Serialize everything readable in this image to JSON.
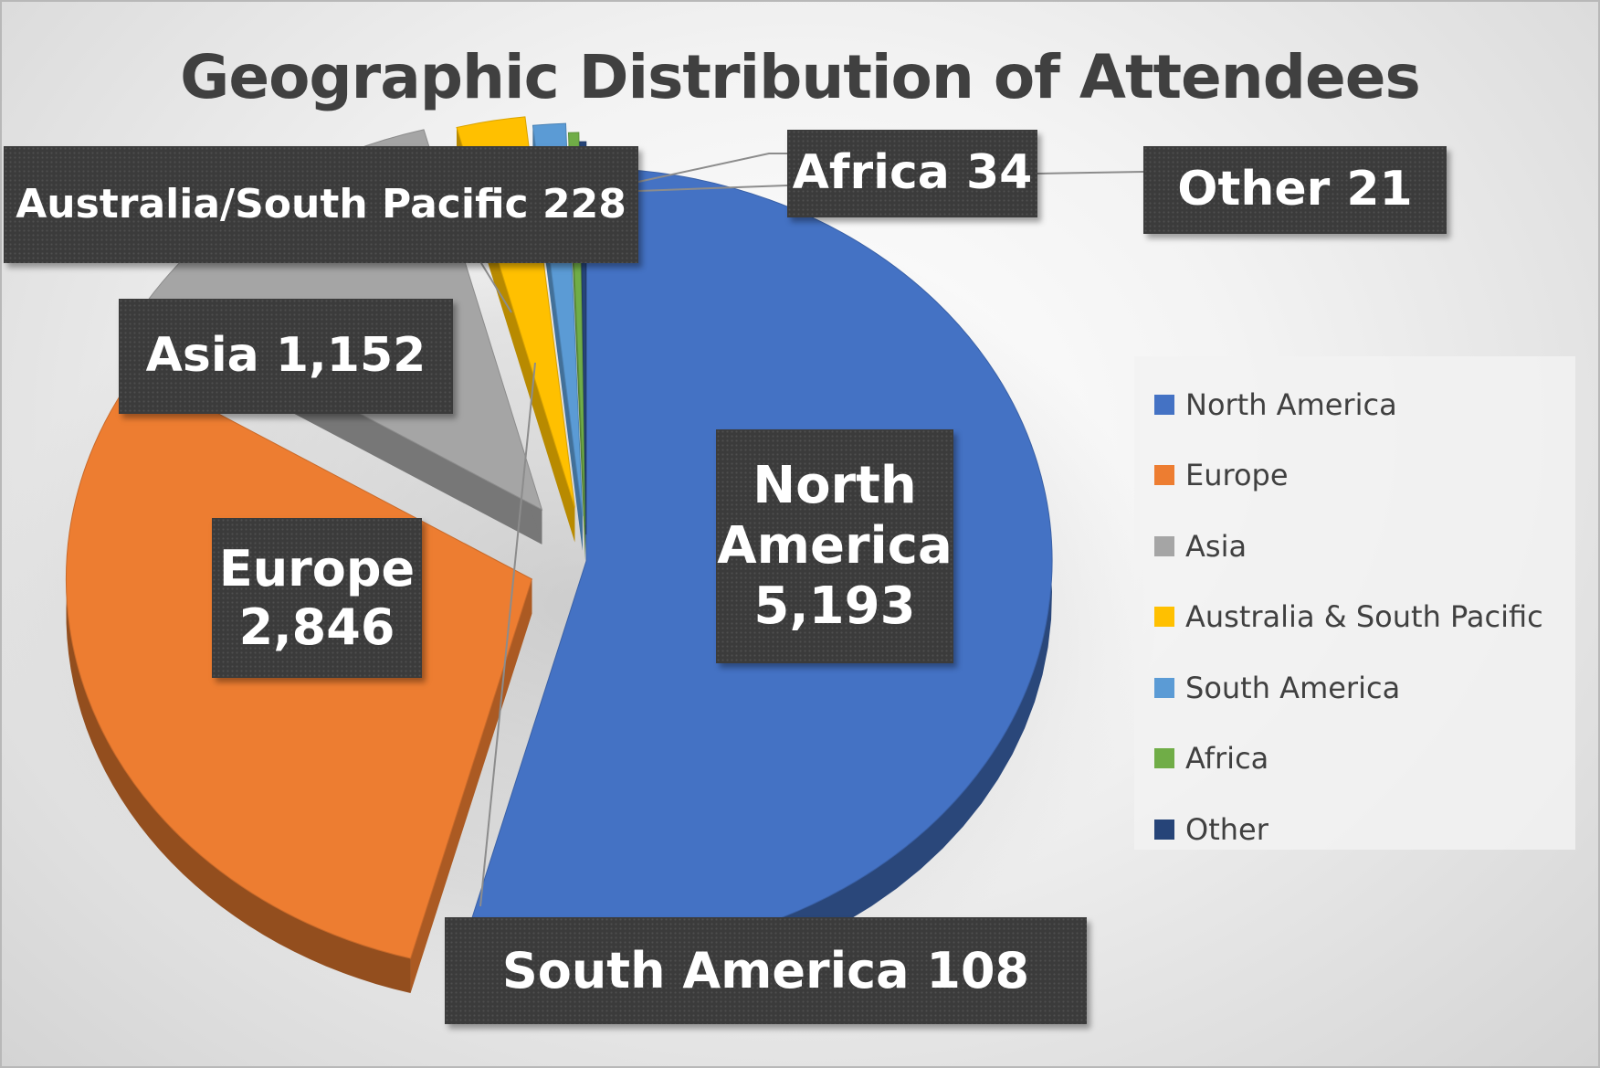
{
  "chart_data": {
    "type": "pie",
    "title": "Geographic Distribution of Attendees",
    "categories": [
      "North America",
      "Europe",
      "Asia",
      "Australia & South Pacific",
      "South America",
      "Africa",
      "Other"
    ],
    "values": [
      5193,
      2846,
      1152,
      228,
      108,
      34,
      21
    ],
    "colors": [
      "#4472C4",
      "#ED7D31",
      "#A5A5A5",
      "#FFC000",
      "#5B9BD5",
      "#70AD47",
      "#264478"
    ],
    "data_labels": [
      [
        "North",
        "America",
        "5,193"
      ],
      [
        "Europe",
        "2,846"
      ],
      [
        "Asia 1,152"
      ],
      [
        "Australia/South Pacific 228"
      ],
      [
        "South America 108"
      ],
      [
        "Africa 34"
      ],
      [
        "Other 21"
      ]
    ],
    "legend": {
      "position": "right",
      "entries": [
        "North America",
        "Europe",
        "Asia",
        "Australia & South Pacific",
        "South America",
        "Africa",
        "Other"
      ]
    },
    "style": "3d-exploded"
  }
}
